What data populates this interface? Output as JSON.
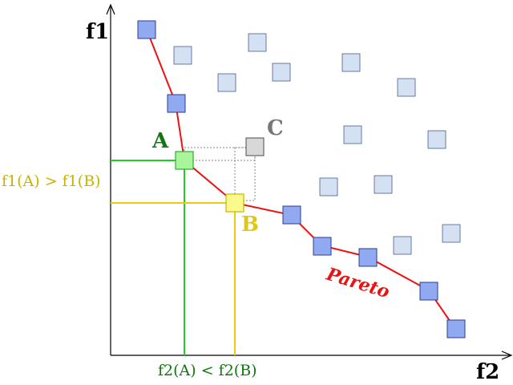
{
  "axes": {
    "y_label": "f1",
    "x_label": "f2"
  },
  "pareto": {
    "label": "Pareto",
    "color": "#ee1111"
  },
  "points": {
    "A": {
      "label": "A",
      "label_color": "#117711",
      "fill": "#a9f59b",
      "stroke": "#33aa33"
    },
    "B": {
      "label": "B",
      "label_color": "#ddc81a",
      "fill": "#fafa8c",
      "stroke": "#c8b800"
    },
    "C": {
      "label": "C",
      "label_color": "#777777",
      "fill": "#d8d8d8",
      "stroke": "#666666"
    }
  },
  "comparisons": {
    "f1_text": "f1(A) > f1(B)",
    "f1_color": "#c8b400",
    "f2_text": "f2(A) < f2(B)",
    "f2_color": "#117711"
  },
  "colors": {
    "front_fill": "#91a9f0",
    "front_stroke": "#2a3f8f",
    "dominated_fill": "#d3e1f3",
    "dominated_stroke": "#4a5f8a",
    "guide_green": "#22cc22",
    "guide_yellow": "#e8cc10",
    "dotted": "#888888"
  }
}
